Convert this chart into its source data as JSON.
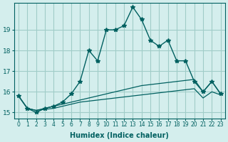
{
  "xlabel": "Humidex (Indice chaleur)",
  "bg_color": "#d4eeed",
  "grid_color": "#a0ccc8",
  "line_color": "#006060",
  "xlim": [
    -0.5,
    23.5
  ],
  "ylim": [
    14.7,
    20.3
  ],
  "yticks": [
    15,
    16,
    17,
    18,
    19
  ],
  "xtick_labels": [
    "0",
    "1",
    "2",
    "3",
    "4",
    "5",
    "6",
    "7",
    "8",
    "9",
    "10",
    "11",
    "12",
    "13",
    "14",
    "15",
    "16",
    "17",
    "18",
    "19",
    "20",
    "21",
    "22",
    "23"
  ],
  "main_y": [
    15.8,
    15.2,
    15.0,
    15.2,
    15.3,
    15.5,
    15.9,
    16.5,
    18.0,
    17.5,
    19.0,
    19.0,
    19.2,
    20.1,
    19.5,
    18.5,
    18.2,
    18.5,
    17.5,
    17.5,
    16.5,
    16.0,
    16.5,
    15.9
  ],
  "line2_y": [
    15.8,
    15.2,
    15.1,
    15.2,
    15.3,
    15.4,
    15.5,
    15.6,
    15.7,
    15.8,
    15.9,
    16.0,
    16.1,
    16.2,
    16.3,
    16.35,
    16.4,
    16.45,
    16.5,
    16.55,
    16.6,
    16.0,
    16.5,
    15.9
  ],
  "line3_y": [
    15.8,
    15.2,
    15.1,
    15.15,
    15.2,
    15.3,
    15.4,
    15.5,
    15.55,
    15.6,
    15.65,
    15.7,
    15.75,
    15.8,
    15.85,
    15.9,
    15.95,
    16.0,
    16.05,
    16.1,
    16.15,
    15.7,
    16.0,
    15.85
  ]
}
